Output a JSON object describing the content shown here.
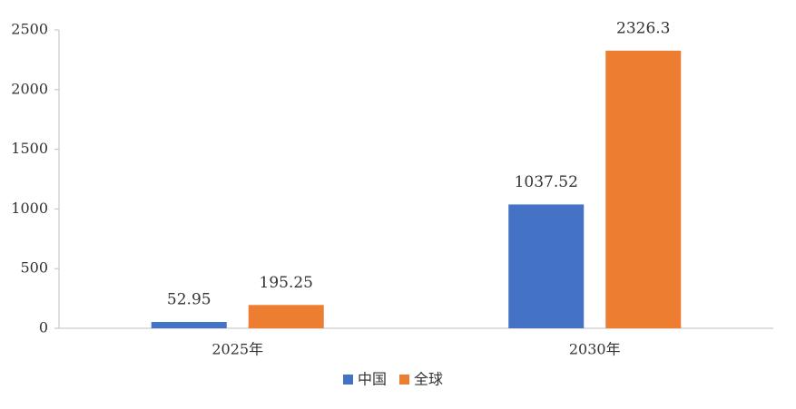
{
  "chart_data": {
    "type": "bar",
    "categories": [
      "2025年",
      "2030年"
    ],
    "series": [
      {
        "name": "中国",
        "color": "#4472c4",
        "values": [
          52.95,
          1037.52
        ]
      },
      {
        "name": "全球",
        "color": "#ed7d31",
        "values": [
          195.25,
          2326.3
        ]
      }
    ],
    "ylim": [
      0,
      2500
    ],
    "yticks": [
      0,
      500,
      1000,
      1500,
      2000,
      2500
    ],
    "grid": false,
    "legend": "bottom"
  }
}
